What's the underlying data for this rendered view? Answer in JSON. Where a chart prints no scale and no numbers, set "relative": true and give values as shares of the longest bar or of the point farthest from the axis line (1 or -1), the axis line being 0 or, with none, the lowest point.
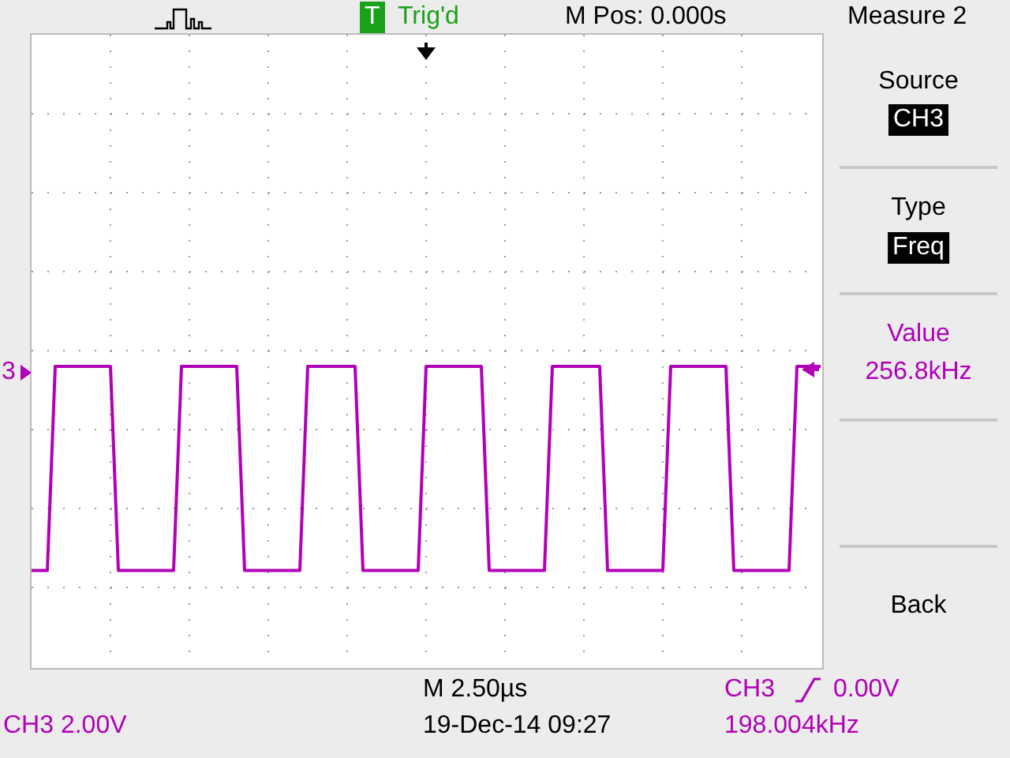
{
  "chart_data": {
    "type": "line",
    "relative": true,
    "categories": [
      null,
      null,
      null,
      null,
      null,
      null,
      null,
      null,
      null,
      null,
      null,
      null,
      null,
      null,
      null,
      null,
      null,
      null,
      null,
      null,
      null,
      null,
      null,
      null,
      null,
      null,
      null,
      null,
      null,
      null,
      null,
      null,
      null,
      null,
      null,
      null,
      null,
      null,
      null,
      null,
      null,
      null,
      null,
      null,
      null,
      null,
      null,
      null,
      null,
      null,
      null,
      null,
      null,
      null,
      null,
      null,
      null,
      null,
      null,
      null,
      null,
      null,
      null,
      null,
      null,
      null,
      null,
      null,
      null,
      null,
      null,
      null,
      null,
      null,
      null,
      null,
      null,
      null,
      null,
      null,
      null,
      null,
      null,
      null,
      null,
      null,
      null,
      null,
      null,
      null,
      null,
      null,
      null,
      null,
      null,
      null,
      null,
      null,
      null,
      null,
      null
    ],
    "series": [
      {
        "color": "#b000b8",
        "values": [
          0.32,
          0.32,
          0.32,
          1,
          1,
          1,
          1,
          1,
          1,
          1,
          1,
          0.32,
          0.32,
          0.32,
          0.32,
          0.32,
          0.32,
          0.32,
          0.32,
          1,
          1,
          1,
          1,
          1,
          1,
          1,
          1,
          0.32,
          0.32,
          0.32,
          0.32,
          0.32,
          0.32,
          0.32,
          0.32,
          1,
          1,
          1,
          1,
          1,
          1,
          1,
          0.32,
          0.32,
          0.32,
          0.32,
          0.32,
          0.32,
          0.32,
          0.32,
          1,
          1,
          1,
          1,
          1,
          1,
          1,
          1,
          0.32,
          0.32,
          0.32,
          0.32,
          0.32,
          0.32,
          0.32,
          0.32,
          1,
          1,
          1,
          1,
          1,
          1,
          1,
          0.32,
          0.32,
          0.32,
          0.32,
          0.32,
          0.32,
          0.32,
          0.32,
          1,
          1,
          1,
          1,
          1,
          1,
          1,
          1,
          0.32,
          0.32,
          0.32,
          0.32,
          0.32,
          0.32,
          0.32,
          0.32,
          1,
          1,
          1,
          1
        ]
      }
    ],
    "tick_labels": false,
    "grid": true,
    "legend": false,
    "marker": "none",
    "line_style": "solid",
    "annotations": [
      "Trig'd",
      "M Pos: 0.000s",
      "Measure 2",
      "Source",
      "CH3",
      "Type",
      "Freq",
      "Value",
      "256.8kHz",
      "Back",
      "3",
      "M 2.50µs",
      "CH3  2.00V",
      "19-Dec-14 09:27",
      "CH3",
      "0.00V",
      "198.004kHz",
      "T"
    ]
  }
}
